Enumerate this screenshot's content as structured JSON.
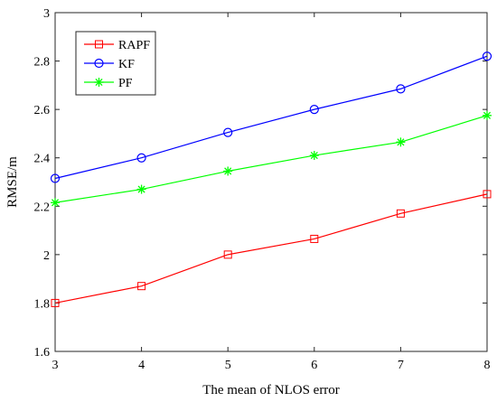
{
  "chart_data": {
    "type": "line",
    "xlabel": "The mean of NLOS error",
    "ylabel": "RMSE/m",
    "xlim": [
      3,
      8
    ],
    "ylim": [
      1.6,
      3
    ],
    "x": [
      3,
      4,
      5,
      6,
      7,
      8
    ],
    "xticks": [
      "3",
      "4",
      "5",
      "6",
      "7",
      "8"
    ],
    "yticks": [
      "1.6",
      "1.8",
      "2",
      "2.2",
      "2.4",
      "2.6",
      "2.8",
      "3"
    ],
    "grid": false,
    "legend_position": "top-left",
    "series": [
      {
        "name": "RAPF",
        "color": "#ff0000",
        "marker": "square",
        "values": [
          1.8,
          1.87,
          2.0,
          2.065,
          2.17,
          2.25
        ]
      },
      {
        "name": "KF",
        "color": "#0000ff",
        "marker": "circle",
        "values": [
          2.315,
          2.4,
          2.505,
          2.6,
          2.685,
          2.82
        ]
      },
      {
        "name": "PF",
        "color": "#00ff00",
        "marker": "star",
        "values": [
          2.215,
          2.27,
          2.345,
          2.41,
          2.465,
          2.575
        ]
      }
    ]
  }
}
